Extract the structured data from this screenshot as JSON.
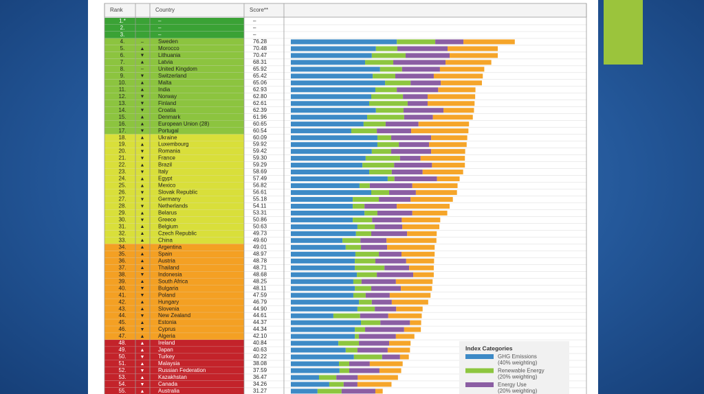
{
  "table": {
    "headers": [
      "Rank",
      "",
      "Country",
      "Score**"
    ],
    "rows": [
      {
        "rank": "1.*",
        "trend": "",
        "country": "–",
        "score": "–",
        "color": "#3aa235"
      },
      {
        "rank": "2.",
        "trend": "",
        "country": "–",
        "score": "–",
        "color": "#3aa235"
      },
      {
        "rank": "3.",
        "trend": "",
        "country": "–",
        "score": "–",
        "color": "#3aa235"
      },
      {
        "rank": "4.",
        "trend": "–",
        "country": "Sweden",
        "score": "76.28",
        "color": "#8cc43f"
      },
      {
        "rank": "5.",
        "trend": "▲",
        "country": "Morocco",
        "score": "70.48",
        "color": "#8cc43f"
      },
      {
        "rank": "6.",
        "trend": "▼",
        "country": "Lithuania",
        "score": "70.47",
        "color": "#8cc43f"
      },
      {
        "rank": "7.",
        "trend": "▲",
        "country": "Latvia",
        "score": "68.31",
        "color": "#8cc43f"
      },
      {
        "rank": "8.",
        "trend": "–",
        "country": "United Kingdom",
        "score": "65.92",
        "color": "#8cc43f"
      },
      {
        "rank": "9.",
        "trend": "▼",
        "country": "Switzerland",
        "score": "65.42",
        "color": "#8cc43f"
      },
      {
        "rank": "10.",
        "trend": "▲",
        "country": "Malta",
        "score": "65.06",
        "color": "#8cc43f"
      },
      {
        "rank": "11.",
        "trend": "▲",
        "country": "India",
        "score": "62.93",
        "color": "#8cc43f"
      },
      {
        "rank": "12.",
        "trend": "▼",
        "country": "Norway",
        "score": "62.80",
        "color": "#8cc43f"
      },
      {
        "rank": "13.",
        "trend": "▼",
        "country": "Finland",
        "score": "62.61",
        "color": "#8cc43f"
      },
      {
        "rank": "14.",
        "trend": "▼",
        "country": "Croatia",
        "score": "62.39",
        "color": "#8cc43f"
      },
      {
        "rank": "15.",
        "trend": "▲",
        "country": "Denmark",
        "score": "61.96",
        "color": "#8cc43f"
      },
      {
        "rank": "16.",
        "trend": "▲",
        "country": "European Union (28)",
        "score": "60.65",
        "color": "#8cc43f"
      },
      {
        "rank": "17.",
        "trend": "▼",
        "country": "Portugal",
        "score": "60.54",
        "color": "#8cc43f"
      },
      {
        "rank": "18.",
        "trend": "▲",
        "country": "Ukraine",
        "score": "60.09",
        "color": "#d9df3a"
      },
      {
        "rank": "19.",
        "trend": "▲",
        "country": "Luxembourg",
        "score": "59.92",
        "color": "#d9df3a"
      },
      {
        "rank": "20.",
        "trend": "▼",
        "country": "Romania",
        "score": "59.42",
        "color": "#d9df3a"
      },
      {
        "rank": "21.",
        "trend": "▼",
        "country": "France",
        "score": "59.30",
        "color": "#d9df3a"
      },
      {
        "rank": "22.",
        "trend": "▲",
        "country": "Brazil",
        "score": "59.29",
        "color": "#d9df3a"
      },
      {
        "rank": "23.",
        "trend": "▼",
        "country": "Italy",
        "score": "58.69",
        "color": "#d9df3a"
      },
      {
        "rank": "24.",
        "trend": "▲",
        "country": "Egypt",
        "score": "57.49",
        "color": "#d9df3a"
      },
      {
        "rank": "25.",
        "trend": "▲",
        "country": "Mexico",
        "score": "56.82",
        "color": "#d9df3a"
      },
      {
        "rank": "26.",
        "trend": "▼",
        "country": "Slovak Republic",
        "score": "56.61",
        "color": "#d9df3a"
      },
      {
        "rank": "27.",
        "trend": "▼",
        "country": "Germany",
        "score": "55.18",
        "color": "#d9df3a"
      },
      {
        "rank": "28.",
        "trend": "▼",
        "country": "Netherlands",
        "score": "54.11",
        "color": "#d9df3a"
      },
      {
        "rank": "29.",
        "trend": "▲",
        "country": "Belarus",
        "score": "53.31",
        "color": "#d9df3a"
      },
      {
        "rank": "30.",
        "trend": "▼",
        "country": "Greece",
        "score": "50.86",
        "color": "#d9df3a"
      },
      {
        "rank": "31.",
        "trend": "▲",
        "country": "Belgium",
        "score": "50.63",
        "color": "#d9df3a"
      },
      {
        "rank": "32.",
        "trend": "▲",
        "country": "Czech Republic",
        "score": "49.73",
        "color": "#d9df3a"
      },
      {
        "rank": "33.",
        "trend": "▲",
        "country": "China",
        "score": "49.60",
        "color": "#d9df3a"
      },
      {
        "rank": "34.",
        "trend": "▲",
        "country": "Argentina",
        "score": "49.01",
        "color": "#f4a023"
      },
      {
        "rank": "35.",
        "trend": "▲",
        "country": "Spain",
        "score": "48.97",
        "color": "#f4a023"
      },
      {
        "rank": "36.",
        "trend": "▲",
        "country": "Austria",
        "score": "48.78",
        "color": "#f4a023"
      },
      {
        "rank": "37.",
        "trend": "▲",
        "country": "Thailand",
        "score": "48.71",
        "color": "#f4a023"
      },
      {
        "rank": "38.",
        "trend": "▼",
        "country": "Indonesia",
        "score": "48.68",
        "color": "#f4a023"
      },
      {
        "rank": "39.",
        "trend": "▲",
        "country": "South Africa",
        "score": "48.25",
        "color": "#f4a023"
      },
      {
        "rank": "40.",
        "trend": "▼",
        "country": "Bulgaria",
        "score": "48.11",
        "color": "#f4a023"
      },
      {
        "rank": "41.",
        "trend": "▼",
        "country": "Poland",
        "score": "47.59",
        "color": "#f4a023"
      },
      {
        "rank": "42.",
        "trend": "▲",
        "country": "Hungary",
        "score": "46.79",
        "color": "#f4a023"
      },
      {
        "rank": "43.",
        "trend": "▲",
        "country": "Slovenia",
        "score": "44.90",
        "color": "#f4a023"
      },
      {
        "rank": "44.",
        "trend": "▼",
        "country": "New Zealand",
        "score": "44.61",
        "color": "#f4a023"
      },
      {
        "rank": "45.",
        "trend": "▲",
        "country": "Estonia",
        "score": "44.37",
        "color": "#f4a023"
      },
      {
        "rank": "46.",
        "trend": "▼",
        "country": "Cyprus",
        "score": "44.34",
        "color": "#f4a023"
      },
      {
        "rank": "47.",
        "trend": "▲",
        "country": "Algeria",
        "score": "42.10",
        "color": "#f4a023"
      },
      {
        "rank": "48.",
        "trend": "▲",
        "country": "Ireland",
        "score": "40.84",
        "color": "#c3232a"
      },
      {
        "rank": "49.",
        "trend": "▲",
        "country": "Japan",
        "score": "40.63",
        "color": "#c3232a"
      },
      {
        "rank": "50.",
        "trend": "▼",
        "country": "Turkey",
        "score": "40.22",
        "color": "#c3232a"
      },
      {
        "rank": "51.",
        "trend": "▲",
        "country": "Malaysia",
        "score": "38.08",
        "color": "#c3232a"
      },
      {
        "rank": "52.",
        "trend": "▼",
        "country": "Russian Federation",
        "score": "37.59",
        "color": "#c3232a"
      },
      {
        "rank": "53.",
        "trend": "▲",
        "country": "Kazakhstan",
        "score": "36.47",
        "color": "#c3232a"
      },
      {
        "rank": "54.",
        "trend": "▼",
        "country": "Canada",
        "score": "34.26",
        "color": "#c3232a"
      },
      {
        "rank": "55.",
        "trend": "▲",
        "country": "Australia",
        "score": "31.27",
        "color": "#c3232a"
      }
    ]
  },
  "chart_data": {
    "type": "bar",
    "orientation": "horizontal",
    "stacked": true,
    "xlim": [
      0,
      100
    ],
    "legend": "lower right",
    "legend_title": "Index Categories",
    "series": [
      {
        "name": "GHG Emissions",
        "weighting": "(40% weighting)",
        "color": "#3d8ac6",
        "values": [
          null,
          null,
          null,
          36.1,
          29.0,
          27.6,
          25.3,
          30.4,
          27.9,
          32.1,
          28.8,
          27.4,
          26.7,
          29.0,
          26.0,
          24.8,
          20.6,
          29.5,
          29.5,
          27.6,
          25.5,
          24.4,
          26.7,
          33.0,
          23.4,
          27.4,
          21.1,
          21.1,
          25.1,
          21.1,
          22.7,
          22.2,
          17.6,
          18.7,
          22.0,
          21.8,
          21.8,
          22.5,
          21.3,
          21.8,
          21.3,
          23.2,
          22.7,
          14.5,
          23.9,
          21.8,
          21.8,
          16.2,
          18.7,
          21.5,
          16.4,
          16.6,
          9.6,
          13.1,
          9.1
        ]
      },
      {
        "name": "Renewable Energy",
        "weighting": "(20% weighting)",
        "color": "#8dc63f",
        "values": [
          null,
          null,
          null,
          13.1,
          7.3,
          11.5,
          9.6,
          7.5,
          7.7,
          8.7,
          7.3,
          10.8,
          13.1,
          9.4,
          12.6,
          7.5,
          8.7,
          4.7,
          7.3,
          6.6,
          11.7,
          10.8,
          7.7,
          2.3,
          3.5,
          6.1,
          8.9,
          4.0,
          4.4,
          6.6,
          5.9,
          5.2,
          6.1,
          5.2,
          8.0,
          7.0,
          10.1,
          6.8,
          2.8,
          5.6,
          4.2,
          4.4,
          5.9,
          9.1,
          6.6,
          3.5,
          1.4,
          7.0,
          4.0,
          9.6,
          3.5,
          3.3,
          5.9,
          4.9,
          8.2
        ]
      },
      {
        "name": "Energy Use",
        "weighting": "(20% weighting)",
        "color": "#8b5ea3",
        "values": [
          null,
          null,
          null,
          9.6,
          17.1,
          15.0,
          17.8,
          12.9,
          13.1,
          10.3,
          14.1,
          8.4,
          6.8,
          13.6,
          9.8,
          11.2,
          11.7,
          13.6,
          10.3,
          13.6,
          7.0,
          12.9,
          10.5,
          14.5,
          14.5,
          9.1,
          10.8,
          11.0,
          11.9,
          10.1,
          9.4,
          12.2,
          8.9,
          8.9,
          7.7,
          10.5,
          8.4,
          12.4,
          11.7,
          10.1,
          8.2,
          6.8,
          7.3,
          9.6,
          10.1,
          13.3,
          12.6,
          10.3,
          10.3,
          6.1,
          7.0,
          10.3,
          7.3,
          4.7,
          11.5
        ]
      },
      {
        "color": "#f5a52a",
        "values": [
          null,
          null,
          null,
          17.5,
          17.1,
          16.4,
          15.6,
          15.1,
          16.7,
          14.0,
          12.7,
          16.2,
          16.0,
          10.4,
          13.6,
          17.2,
          19.5,
          12.3,
          12.8,
          11.6,
          15.1,
          11.2,
          13.8,
          7.7,
          15.4,
          14.0,
          14.4,
          18.0,
          11.9,
          13.1,
          12.6,
          10.1,
          17.0,
          16.2,
          11.3,
          9.5,
          8.4,
          7.0,
          12.5,
          10.6,
          13.9,
          12.4,
          9.0,
          11.4,
          3.8,
          5.7,
          6.3,
          7.3,
          7.6,
          3.0,
          11.2,
          7.4,
          13.7,
          11.6,
          2.5
        ]
      }
    ]
  }
}
